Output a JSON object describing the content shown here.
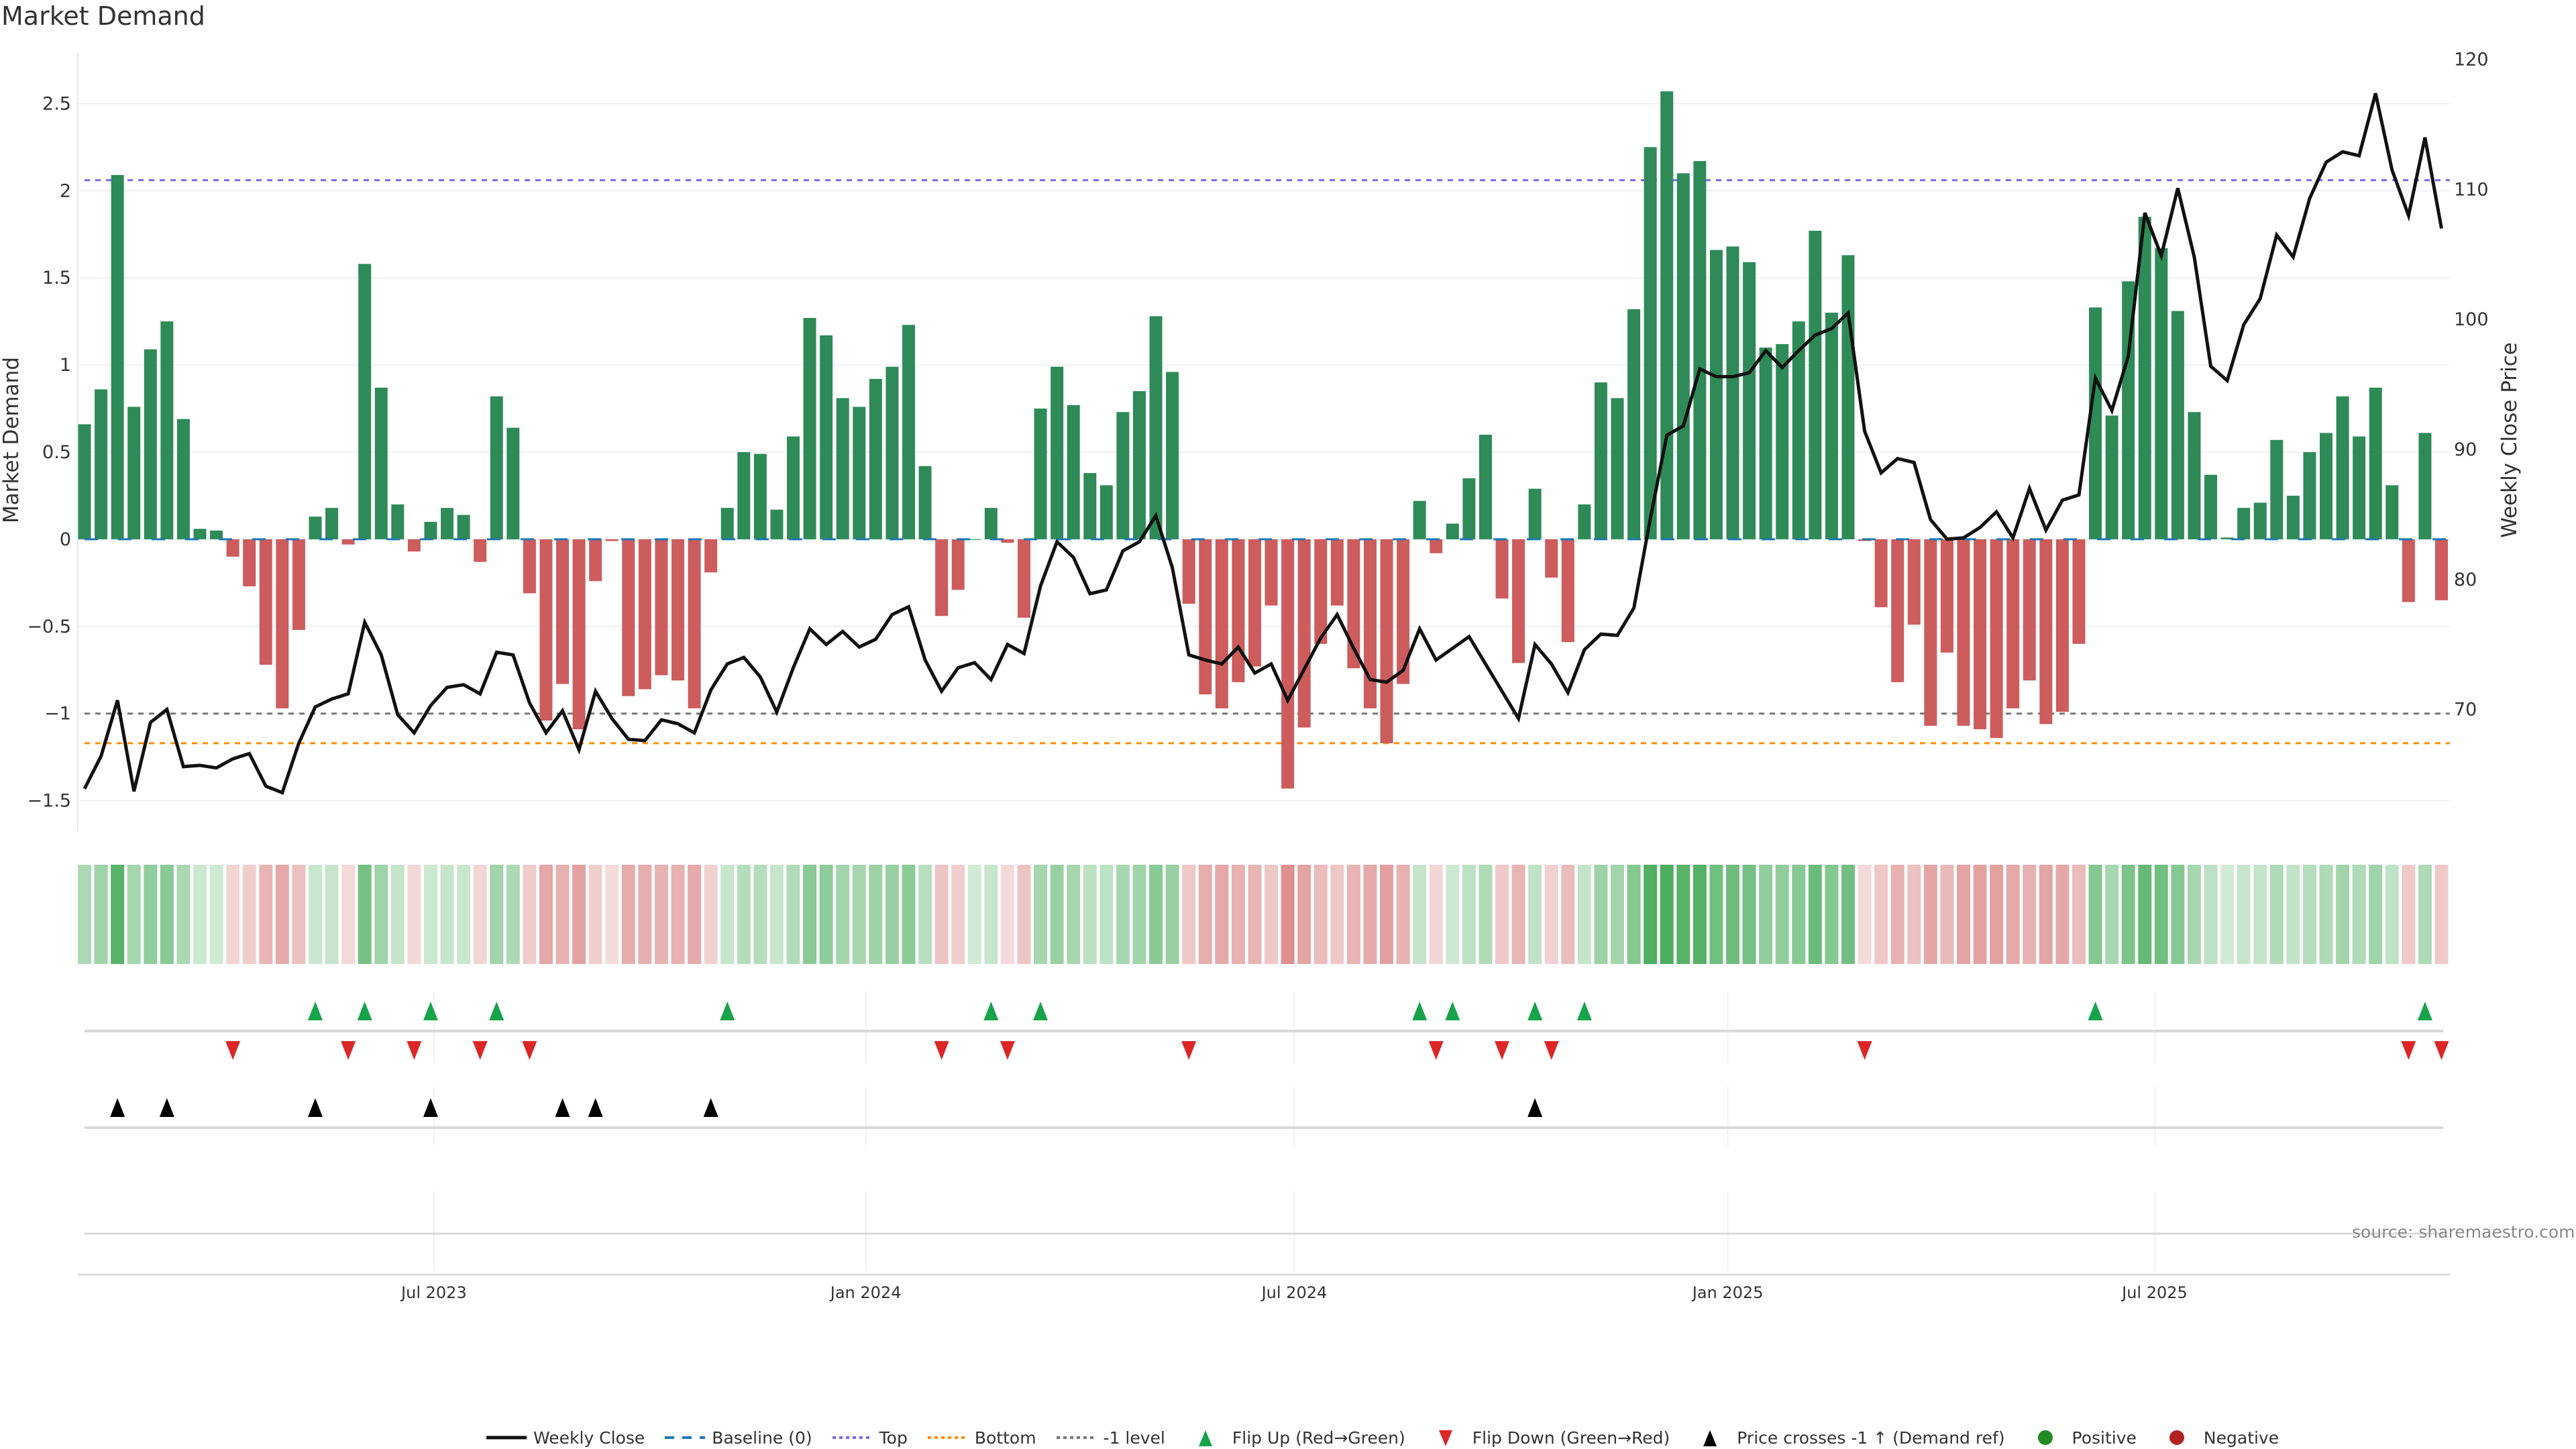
{
  "title": "Market Demand",
  "source": "source: sharemaestro.com",
  "colors": {
    "positive_bar": "#2e8b57",
    "negative_bar": "#cd5c5c",
    "price_line": "#111111",
    "baseline": "#1f77b4",
    "top": "#7b68ee",
    "bottom": "#ff8c00",
    "minus_one": "#777777",
    "flip_up": "#16a34a",
    "flip_down": "#dc2626",
    "price_cross": "#000000",
    "heat_positive": "#2ea043",
    "heat_negative": "#cd5c5c",
    "legend_positive": "#228b22",
    "legend_negative": "#b22222"
  },
  "legend": [
    {
      "label": "Weekly Close",
      "kind": "line",
      "color": "#111111"
    },
    {
      "label": "Baseline (0)",
      "kind": "dash",
      "color": "#1f77b4"
    },
    {
      "label": "Top",
      "kind": "dot",
      "color": "#7b68ee"
    },
    {
      "label": "Bottom",
      "kind": "dot",
      "color": "#ff8c00"
    },
    {
      "label": "-1 level",
      "kind": "dot",
      "color": "#777777"
    },
    {
      "label": "Flip Up (Red→Green)",
      "kind": "tri-up",
      "color": "#16a34a"
    },
    {
      "label": "Flip Down (Green→Red)",
      "kind": "tri-down",
      "color": "#dc2626"
    },
    {
      "label": "Price crosses -1 ↑ (Demand ref)",
      "kind": "tri-up",
      "color": "#000000"
    },
    {
      "label": "Positive",
      "kind": "circle",
      "color": "#228b22"
    },
    {
      "label": "Negative",
      "kind": "circle",
      "color": "#b22222"
    }
  ],
  "chart_data": {
    "type": "bar",
    "title": "Market Demand",
    "xlabel": "",
    "ylabel": "Market Demand",
    "y2label": "Weekly Close Price",
    "ylim": [
      -1.64,
      2.79
    ],
    "y2lim": [
      61.1,
      120.5
    ],
    "yticks": [
      {
        "label": "2.5",
        "value": 2.5
      },
      {
        "label": "2",
        "value": 2
      },
      {
        "label": "1.5",
        "value": 1.5
      },
      {
        "label": "1",
        "value": 1
      },
      {
        "label": "0.5",
        "value": 0.5
      },
      {
        "label": "0",
        "value": 0
      },
      {
        "label": "−0.5",
        "value": -0.5
      },
      {
        "label": "−1",
        "value": -1
      },
      {
        "label": "−1.5",
        "value": -1.5
      }
    ],
    "y2ticks": [
      {
        "label": "120",
        "value": 120
      },
      {
        "label": "110",
        "value": 110
      },
      {
        "label": "100",
        "value": 100
      },
      {
        "label": "90",
        "value": 90
      },
      {
        "label": "80",
        "value": 80
      },
      {
        "label": "70",
        "value": 70
      }
    ],
    "xticks": [
      {
        "label": "Jul 2023",
        "week_index": 21.2
      },
      {
        "label": "Jan 2024",
        "week_index": 47.4
      },
      {
        "label": "Jul 2024",
        "week_index": 73.4
      },
      {
        "label": "Jan 2025",
        "week_index": 99.7
      },
      {
        "label": "Jul 2025",
        "week_index": 125.6
      }
    ],
    "reference_lines": {
      "baseline": 0,
      "top": 2.06,
      "bottom": -1.17,
      "minus_one": -1
    },
    "demand": [
      0.66,
      0.86,
      2.09,
      0.76,
      1.09,
      1.25,
      0.69,
      0.06,
      0.05,
      -0.1,
      -0.27,
      -0.72,
      -0.97,
      -0.52,
      0.13,
      0.18,
      -0.03,
      1.58,
      0.87,
      0.2,
      -0.07,
      0.1,
      0.18,
      0.14,
      -0.13,
      0.82,
      0.64,
      -0.31,
      -1.04,
      -0.83,
      -1.09,
      -0.24,
      -0.01,
      -0.9,
      -0.86,
      -0.78,
      -0.81,
      -0.97,
      -0.19,
      0.18,
      0.5,
      0.49,
      0.17,
      0.59,
      1.27,
      1.17,
      0.81,
      0.76,
      0.92,
      0.99,
      1.23,
      0.42,
      -0.44,
      -0.29,
      0,
      0.18,
      -0.02,
      -0.45,
      0.75,
      0.99,
      0.77,
      0.38,
      0.31,
      0.73,
      0.85,
      1.28,
      0.96,
      -0.37,
      -0.89,
      -0.97,
      -0.82,
      -0.73,
      -0.38,
      -1.43,
      -1.08,
      -0.6,
      -0.38,
      -0.74,
      -0.97,
      -1.17,
      -0.83,
      0.22,
      -0.08,
      0.09,
      0.35,
      0.6,
      -0.34,
      -0.71,
      0.29,
      -0.22,
      -0.59,
      0.2,
      0.9,
      0.81,
      1.32,
      2.25,
      2.57,
      2.1,
      2.17,
      1.66,
      1.68,
      1.59,
      1.1,
      1.12,
      1.25,
      1.77,
      1.3,
      1.63,
      -0.01,
      -0.39,
      -0.82,
      -0.49,
      -1.07,
      -0.65,
      -1.07,
      -1.09,
      -1.14,
      -0.97,
      -0.81,
      -1.06,
      -0.99,
      -0.6,
      1.33,
      0.71,
      1.48,
      1.85,
      1.67,
      1.31,
      0.73,
      0.37,
      0.01,
      0.18,
      0.21,
      0.57,
      0.25,
      0.5,
      0.61,
      0.82,
      0.59,
      0.87,
      0.31,
      -0.36,
      0.61,
      -0.35
    ],
    "weekly_close": [
      63.9,
      66.4,
      70.7,
      63.7,
      69.0,
      70.0,
      65.6,
      65.7,
      65.5,
      66.2,
      66.6,
      64.1,
      63.6,
      67.4,
      70.2,
      70.8,
      71.2,
      76.7,
      74.2,
      69.6,
      68.2,
      70.3,
      71.7,
      71.9,
      71.2,
      74.4,
      74.2,
      70.5,
      68.2,
      69.9,
      66.9,
      71.4,
      69.3,
      67.7,
      67.6,
      69.2,
      68.9,
      68.2,
      71.5,
      73.5,
      74.0,
      72.5,
      69.8,
      73.2,
      76.2,
      75.0,
      76.0,
      74.8,
      75.4,
      77.3,
      77.9,
      73.8,
      71.4,
      73.2,
      73.6,
      72.3,
      75.0,
      74.3,
      79.5,
      82.9,
      81.7,
      78.9,
      79.2,
      82.2,
      82.9,
      84.9,
      80.9,
      74.2,
      73.8,
      73.5,
      74.8,
      72.8,
      73.5,
      70.7,
      73.1,
      75.5,
      77.3,
      74.7,
      72.3,
      72.1,
      73.0,
      76.2,
      73.8,
      74.7,
      75.6,
      73.5,
      71.4,
      69.3,
      75.0,
      73.5,
      71.3,
      74.6,
      75.8,
      75.7,
      77.8,
      84.7,
      91.1,
      91.8,
      96.2,
      95.6,
      95.6,
      95.9,
      97.6,
      96.3,
      97.6,
      98.8,
      99.3,
      100.5,
      91.4,
      88.2,
      89.3,
      89.0,
      84.6,
      83.1,
      83.2,
      84.0,
      85.2,
      83.2,
      87.0,
      83.8,
      86.1,
      86.5,
      95.5,
      93.0,
      97.2,
      108.2,
      104.9,
      110.1,
      104.8,
      96.4,
      95.3,
      99.6,
      101.6,
      106.5,
      104.8,
      109.3,
      112.1,
      112.9,
      112.6,
      117.4,
      111.5,
      108.0,
      114.0,
      107.0
    ],
    "flip_up": [
      14,
      17,
      21,
      25,
      39,
      55,
      58,
      81,
      83,
      88,
      91,
      122,
      142
    ],
    "flip_down": [
      9,
      16,
      20,
      24,
      27,
      52,
      56,
      67,
      82,
      86,
      89,
      108,
      141,
      143
    ],
    "price_cross_up": [
      2,
      5,
      14,
      21,
      29,
      31,
      38,
      88
    ]
  }
}
